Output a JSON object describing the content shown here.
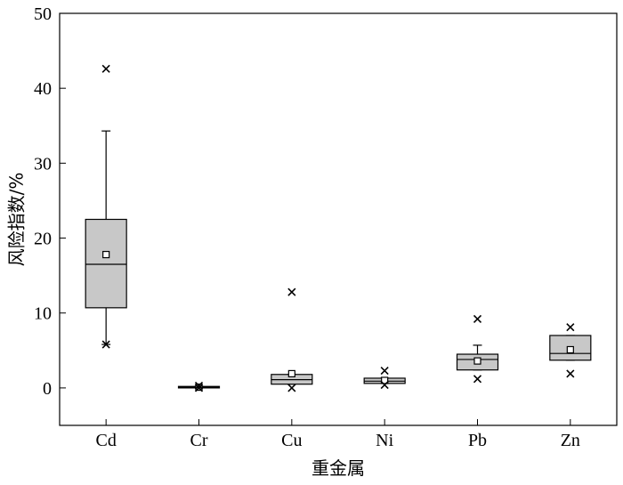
{
  "chart_data": {
    "type": "box",
    "title": "",
    "xlabel": "重金属",
    "ylabel": "风险指数/%",
    "ylim": [
      -5,
      50
    ],
    "yticks": [
      0,
      10,
      20,
      30,
      40,
      50
    ],
    "grid": false,
    "categories": [
      "Cd",
      "Cr",
      "Cu",
      "Ni",
      "Pb",
      "Zn"
    ],
    "boxes": [
      {
        "category": "Cd",
        "min": 5.8,
        "q1": 10.7,
        "median": 16.5,
        "q3": 22.5,
        "max": 34.3,
        "mean": 17.8,
        "outliers": [
          42.6,
          5.8
        ]
      },
      {
        "category": "Cr",
        "min": 0.0,
        "q1": 0.0,
        "median": 0.1,
        "q3": 0.2,
        "max": 0.2,
        "mean": 0.1,
        "outliers": [
          0.3,
          0.0
        ]
      },
      {
        "category": "Cu",
        "min": 0.5,
        "q1": 0.5,
        "median": 1.1,
        "q3": 1.8,
        "max": 1.8,
        "mean": 1.9,
        "outliers": [
          12.8,
          0.0
        ]
      },
      {
        "category": "Ni",
        "min": 0.6,
        "q1": 0.6,
        "median": 0.9,
        "q3": 1.3,
        "max": 1.3,
        "mean": 1.0,
        "outliers": [
          2.3,
          0.4
        ]
      },
      {
        "category": "Pb",
        "min": 2.4,
        "q1": 2.4,
        "median": 3.8,
        "q3": 4.5,
        "max": 5.7,
        "mean": 3.6,
        "outliers": [
          9.2,
          1.2
        ]
      },
      {
        "category": "Zn",
        "min": 3.7,
        "q1": 3.7,
        "median": 4.6,
        "q3": 7.0,
        "max": 7.0,
        "mean": 5.1,
        "outliers": [
          8.1,
          1.9
        ]
      }
    ]
  }
}
